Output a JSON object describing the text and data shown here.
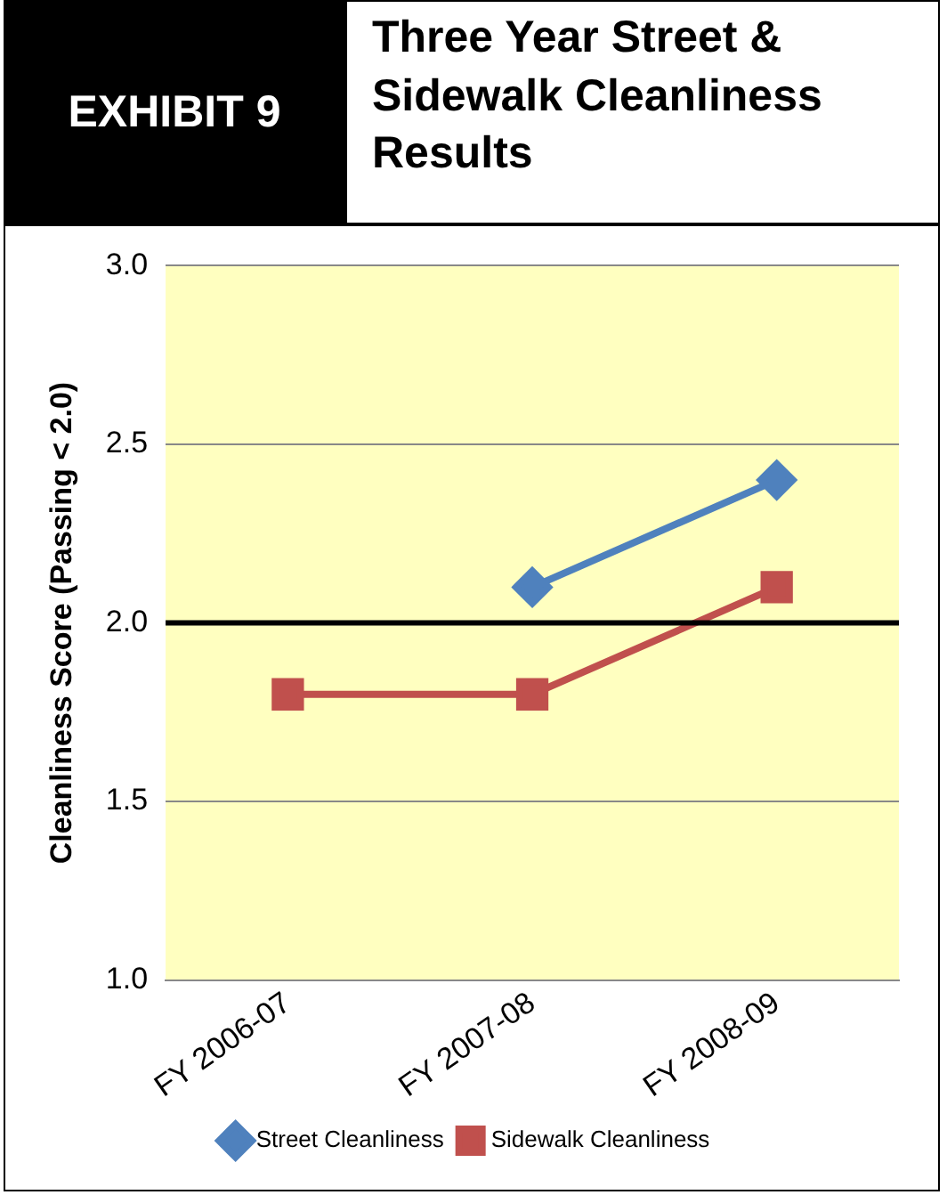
{
  "chart_data": {
    "type": "line",
    "title": "Three Year Street & Sidewalk Cleanliness Results",
    "annotations": [
      "EXHIBIT 9"
    ],
    "ylabel": "Cleanliness Score (Passing < 2.0)",
    "categories": [
      "FY 2006-07",
      "FY 2007-08",
      "FY 2008-09"
    ],
    "series": [
      {
        "name": "Street Cleanliness",
        "color": "#4f81bd",
        "marker": "diamond",
        "values": [
          null,
          2.1,
          2.4
        ]
      },
      {
        "name": "Sidewalk Cleanliness",
        "color": "#c0504d",
        "marker": "square",
        "values": [
          1.8,
          1.8,
          2.1
        ]
      }
    ],
    "ylim": [
      1.0,
      3.0
    ],
    "yticks": [
      {
        "value": 1.0,
        "label": "1.0"
      },
      {
        "value": 1.5,
        "label": "1.5"
      },
      {
        "value": 2.0,
        "label": "2.0"
      },
      {
        "value": 2.5,
        "label": "2.5"
      },
      {
        "value": 3.0,
        "label": "3.0"
      }
    ],
    "grid": "y",
    "legend": "bottom",
    "line_style": "solid",
    "ref_lines": [
      {
        "axis": "y",
        "value": 2.0,
        "color": "#000000"
      }
    ]
  }
}
